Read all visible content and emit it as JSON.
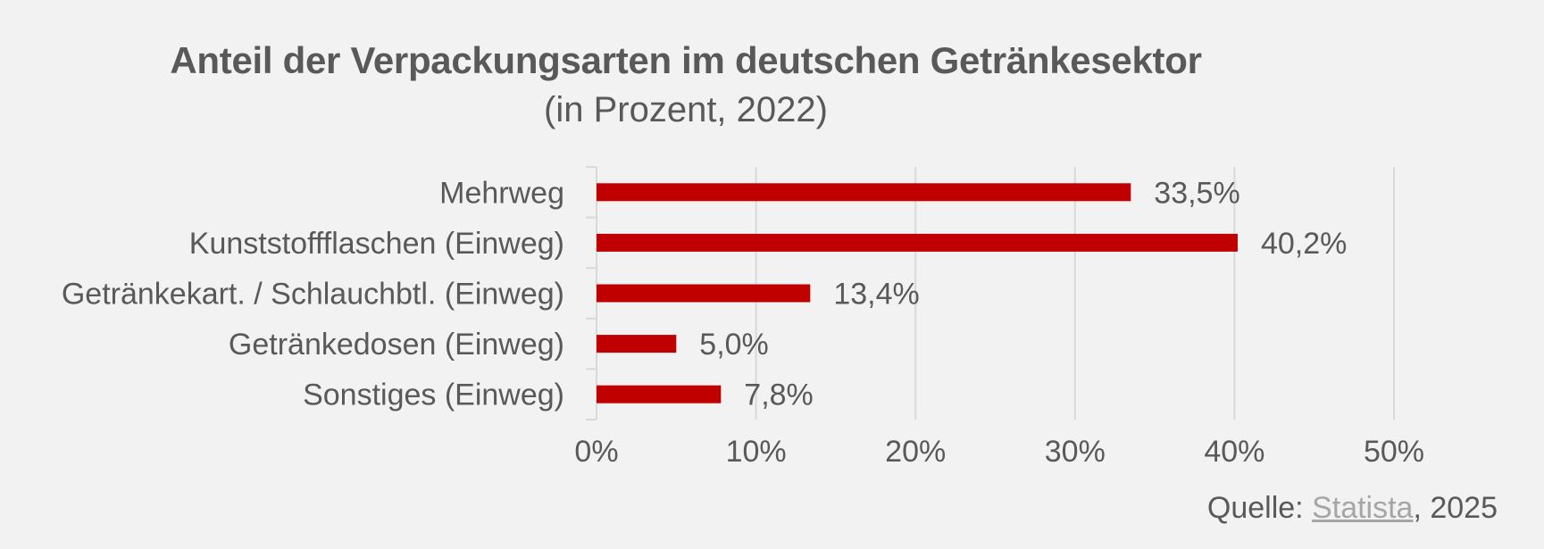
{
  "chart_data": {
    "type": "bar",
    "orientation": "horizontal",
    "title": "Anteil der Verpackungsarten im deutschen Getränkesektor",
    "subtitle": "(in Prozent, 2022)",
    "categories": [
      "Mehrweg",
      "Kunststoffflaschen (Einweg)",
      "Getränkekart. / Schlauchbtl. (Einweg)",
      "Getränkedosen (Einweg)",
      "Sonstiges (Einweg)"
    ],
    "values": [
      33.5,
      40.2,
      13.4,
      5.0,
      7.8
    ],
    "value_labels": [
      "33,5%",
      "40,2%",
      "13,4%",
      "5,0%",
      "7,8%"
    ],
    "xlim": [
      0,
      50
    ],
    "x_ticks": [
      0,
      10,
      20,
      30,
      40,
      50
    ],
    "x_tick_labels": [
      "0%",
      "10%",
      "20%",
      "30%",
      "40%",
      "50%"
    ],
    "xlabel": "",
    "ylabel": "",
    "grid": true,
    "bar_color": "#c00000",
    "grid_color": "#d9d9d9",
    "text_color": "#595959"
  },
  "source": {
    "prefix": "Quelle: ",
    "link_text": "Statista",
    "suffix": ", 2025"
  }
}
